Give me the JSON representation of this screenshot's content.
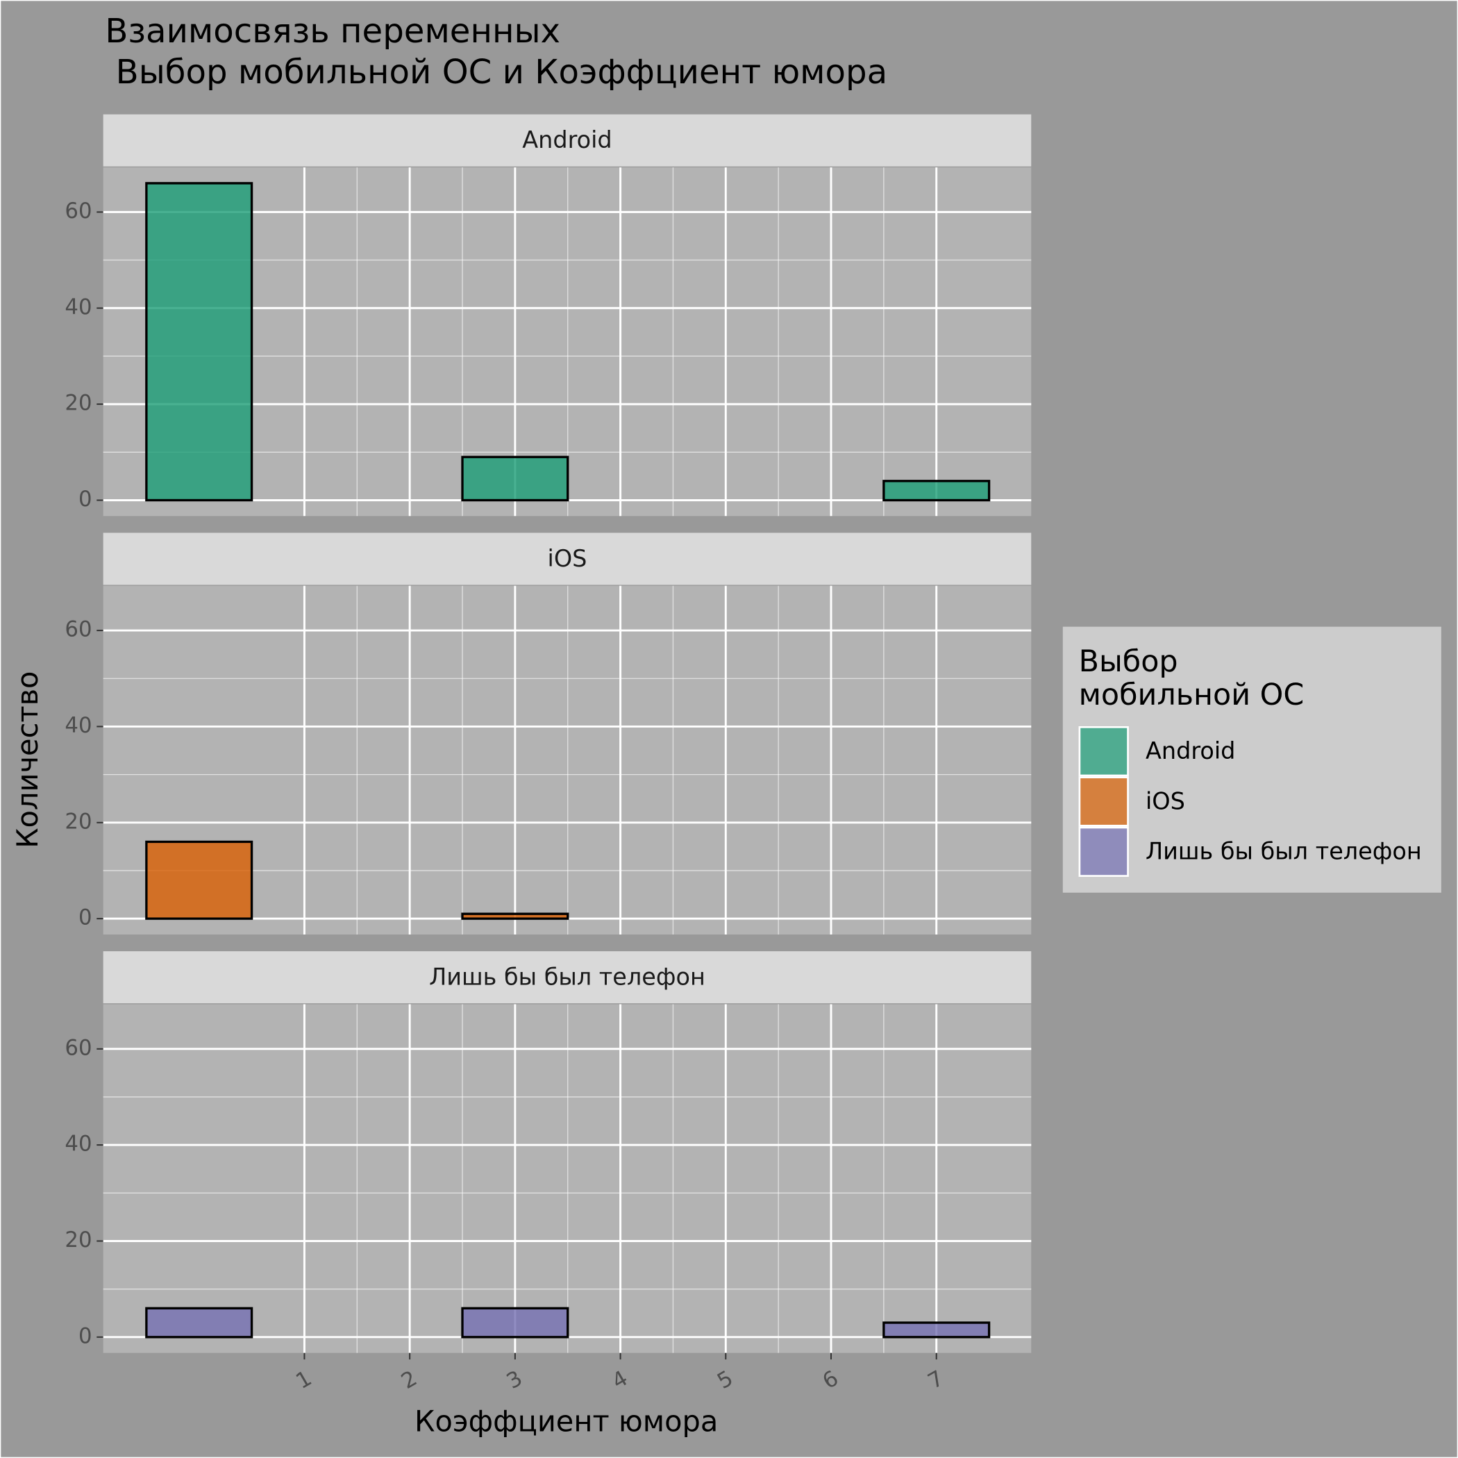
{
  "chart_data": {
    "type": "histogram",
    "title": "Взаимосвязь переменных\n Выбор мобильной ОС и Коэффциент юмора",
    "x_label": "Коэффциент юмора",
    "y_label": "Количество",
    "legend_title": "Выбор\nмобильной ОС",
    "legend": "right",
    "bins": [
      -0.5,
      0.5,
      1.5,
      2.5,
      3.5,
      4.5,
      5.5,
      6.5,
      7.5
    ],
    "series": [
      {
        "name": "Android",
        "color": "#1b9e77",
        "values": [
          66,
          0,
          0,
          9,
          0,
          0,
          0,
          4
        ]
      },
      {
        "name": "iOS",
        "color": "#d95f02",
        "values": [
          16,
          0,
          0,
          1,
          0,
          0,
          0,
          0
        ]
      },
      {
        "name": "Лишь бы был телефон",
        "color": "#7570b3",
        "values": [
          6,
          0,
          0,
          6,
          0,
          0,
          0,
          3
        ]
      }
    ],
    "xlim": [
      -0.91,
      7.9
    ],
    "xticks": [
      1,
      2,
      3,
      4,
      5,
      6,
      7
    ],
    "ylim": [
      -3.3,
      69.3
    ],
    "yticks": [
      0,
      20,
      40,
      60
    ],
    "grid": true
  }
}
